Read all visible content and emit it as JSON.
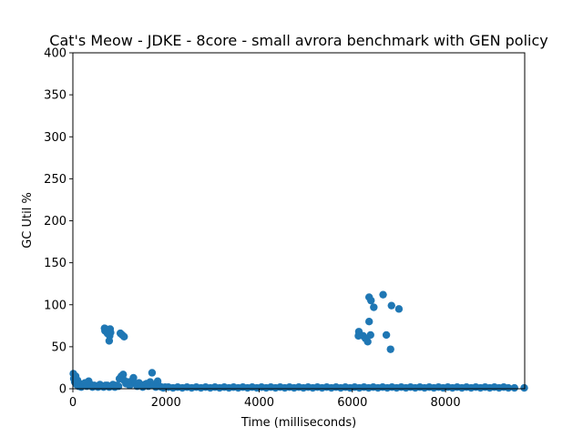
{
  "chart_data": {
    "type": "scatter",
    "title": "Cat's Meow - JDKE - 8core -  small avrora benchmark with GEN policy",
    "xlabel": "Time (milliseconds)",
    "ylabel": "GC Util %",
    "xlim": [
      0,
      9700
    ],
    "ylim": [
      0,
      400
    ],
    "xticks": [
      0,
      2000,
      4000,
      6000,
      8000
    ],
    "yticks": [
      0,
      50,
      100,
      150,
      200,
      250,
      300,
      350,
      400
    ],
    "grid": false,
    "marker_color": "#1f77b4",
    "series": [
      {
        "points": [
          [
            10,
            18
          ],
          [
            20,
            12
          ],
          [
            40,
            8
          ],
          [
            60,
            15
          ],
          [
            80,
            5
          ],
          [
            100,
            10
          ],
          [
            120,
            3
          ],
          [
            150,
            6
          ],
          [
            180,
            2
          ],
          [
            220,
            4
          ],
          [
            260,
            7
          ],
          [
            300,
            3
          ],
          [
            340,
            9
          ],
          [
            380,
            5
          ],
          [
            420,
            2
          ],
          [
            460,
            4
          ],
          [
            500,
            3
          ],
          [
            540,
            2
          ],
          [
            580,
            5
          ],
          [
            620,
            3
          ],
          [
            660,
            2
          ],
          [
            700,
            4
          ],
          [
            680,
            72
          ],
          [
            690,
            69
          ],
          [
            710,
            71
          ],
          [
            720,
            68
          ],
          [
            740,
            66
          ],
          [
            760,
            70
          ],
          [
            780,
            57
          ],
          [
            790,
            63
          ],
          [
            800,
            71
          ],
          [
            810,
            67
          ],
          [
            740,
            4
          ],
          [
            780,
            2
          ],
          [
            820,
            3
          ],
          [
            860,
            5
          ],
          [
            900,
            2
          ],
          [
            940,
            4
          ],
          [
            980,
            3
          ],
          [
            1000,
            12
          ],
          [
            1040,
            15
          ],
          [
            1080,
            17
          ],
          [
            1100,
            10
          ],
          [
            1140,
            6
          ],
          [
            1180,
            8
          ],
          [
            1020,
            66
          ],
          [
            1060,
            64
          ],
          [
            1100,
            62
          ],
          [
            1220,
            4
          ],
          [
            1260,
            9
          ],
          [
            1300,
            13
          ],
          [
            1340,
            6
          ],
          [
            1380,
            3
          ],
          [
            1420,
            7
          ],
          [
            1460,
            4
          ],
          [
            1500,
            2
          ],
          [
            1540,
            5
          ],
          [
            1580,
            6
          ],
          [
            1620,
            3
          ],
          [
            1660,
            8
          ],
          [
            1700,
            19
          ],
          [
            1740,
            4
          ],
          [
            1780,
            2
          ],
          [
            1820,
            9
          ],
          [
            1860,
            3
          ],
          [
            1900,
            2
          ],
          [
            1940,
            1
          ],
          [
            1980,
            2
          ],
          [
            2050,
            2
          ],
          [
            2150,
            1
          ],
          [
            2250,
            2
          ],
          [
            2350,
            1
          ],
          [
            2450,
            2
          ],
          [
            2550,
            1
          ],
          [
            2650,
            2
          ],
          [
            2750,
            1
          ],
          [
            2850,
            2
          ],
          [
            2950,
            1
          ],
          [
            3050,
            2
          ],
          [
            3150,
            1
          ],
          [
            3250,
            2
          ],
          [
            3350,
            1
          ],
          [
            3450,
            2
          ],
          [
            3550,
            1
          ],
          [
            3650,
            2
          ],
          [
            3750,
            1
          ],
          [
            3850,
            2
          ],
          [
            3950,
            1
          ],
          [
            4050,
            2
          ],
          [
            4150,
            1
          ],
          [
            4250,
            2
          ],
          [
            4350,
            1
          ],
          [
            4450,
            2
          ],
          [
            4550,
            1
          ],
          [
            4650,
            2
          ],
          [
            4750,
            1
          ],
          [
            4850,
            2
          ],
          [
            4950,
            1
          ],
          [
            5050,
            2
          ],
          [
            5150,
            1
          ],
          [
            5250,
            2
          ],
          [
            5350,
            1
          ],
          [
            5450,
            2
          ],
          [
            5550,
            1
          ],
          [
            5650,
            2
          ],
          [
            5750,
            1
          ],
          [
            5850,
            2
          ],
          [
            5950,
            1
          ],
          [
            6050,
            2
          ],
          [
            6130,
            63
          ],
          [
            6140,
            68
          ],
          [
            6230,
            63
          ],
          [
            6280,
            60
          ],
          [
            6330,
            56
          ],
          [
            6360,
            80
          ],
          [
            6360,
            109
          ],
          [
            6390,
            64
          ],
          [
            6400,
            105
          ],
          [
            6460,
            97
          ],
          [
            6660,
            112
          ],
          [
            6730,
            64
          ],
          [
            6820,
            47
          ],
          [
            6840,
            99
          ],
          [
            7000,
            95
          ],
          [
            6150,
            1
          ],
          [
            6250,
            2
          ],
          [
            6350,
            1
          ],
          [
            6450,
            2
          ],
          [
            6550,
            1
          ],
          [
            6650,
            2
          ],
          [
            6750,
            1
          ],
          [
            6850,
            2
          ],
          [
            6950,
            1
          ],
          [
            7050,
            2
          ],
          [
            7150,
            1
          ],
          [
            7250,
            2
          ],
          [
            7350,
            1
          ],
          [
            7450,
            2
          ],
          [
            7550,
            1
          ],
          [
            7650,
            2
          ],
          [
            7750,
            1
          ],
          [
            7850,
            2
          ],
          [
            7950,
            1
          ],
          [
            8050,
            2
          ],
          [
            8150,
            1
          ],
          [
            8250,
            2
          ],
          [
            8350,
            1
          ],
          [
            8450,
            2
          ],
          [
            8550,
            1
          ],
          [
            8650,
            2
          ],
          [
            8750,
            1
          ],
          [
            8850,
            2
          ],
          [
            8950,
            1
          ],
          [
            9050,
            2
          ],
          [
            9150,
            1
          ],
          [
            9250,
            2
          ],
          [
            9350,
            1
          ],
          [
            9480,
            1
          ],
          [
            9690,
            1
          ]
        ]
      }
    ]
  }
}
